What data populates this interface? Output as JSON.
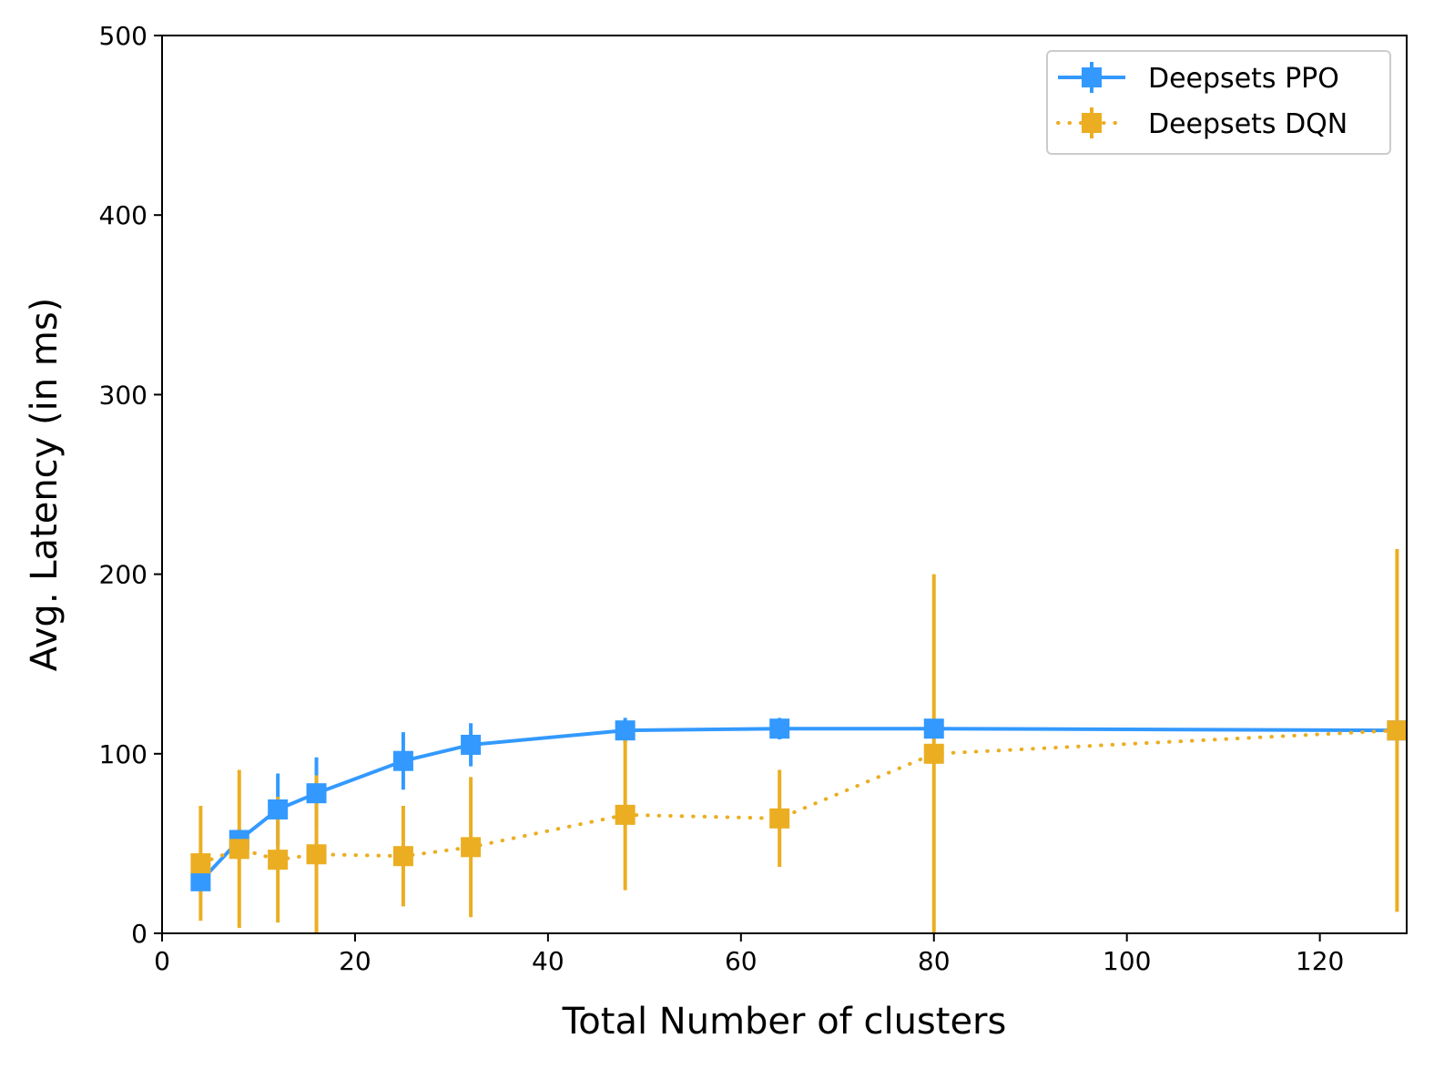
{
  "chart_data": {
    "type": "line",
    "xlabel": "Total Number of clusters",
    "ylabel": "Avg. Latency (in ms)",
    "xlim": [
      0,
      129
    ],
    "ylim": [
      0,
      500
    ],
    "xticks": [
      0,
      20,
      40,
      60,
      80,
      100,
      120
    ],
    "yticks": [
      0,
      100,
      200,
      300,
      400,
      500
    ],
    "grid": false,
    "legend_position": "top-right",
    "series": [
      {
        "name": "Deepsets PPO",
        "color": "#3399ff",
        "linestyle": "solid",
        "marker": "square",
        "x": [
          4,
          8,
          12,
          16,
          25,
          32,
          48,
          64,
          80,
          128
        ],
        "y": [
          29,
          52,
          69,
          78,
          96,
          105,
          113,
          114,
          114,
          113
        ],
        "yerr": [
          5,
          6,
          20,
          20,
          16,
          12,
          7,
          6,
          4,
          3
        ]
      },
      {
        "name": "Deepsets DQN",
        "color": "#ebae22",
        "linestyle": "dotted",
        "marker": "square",
        "x": [
          4,
          8,
          12,
          16,
          25,
          32,
          48,
          64,
          80,
          128
        ],
        "y": [
          39,
          47,
          41,
          44,
          43,
          48,
          66,
          64,
          100,
          113
        ],
        "yerr": [
          32,
          44,
          35,
          44,
          28,
          39,
          42,
          27,
          100,
          101
        ]
      }
    ]
  }
}
